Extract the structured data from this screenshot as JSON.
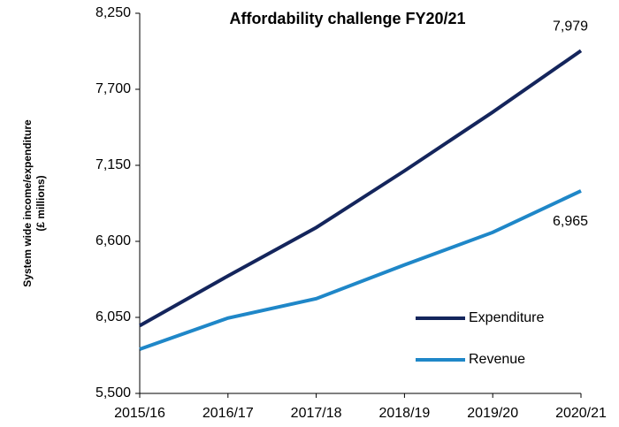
{
  "chart_data": {
    "type": "line",
    "title": "Affordability challenge FY20/21",
    "ylabel": [
      "System wide income/expenditure",
      "(£ millions)"
    ],
    "categories": [
      "2015/16",
      "2016/17",
      "2017/18",
      "2018/19",
      "2019/20",
      "2020/21"
    ],
    "series": [
      {
        "name": "Expenditure",
        "color": "#14255c",
        "values": [
          5990,
          6350,
          6700,
          7110,
          7535,
          7979
        ],
        "value_labels": [
          null,
          null,
          null,
          null,
          null,
          "7,979"
        ]
      },
      {
        "name": "Revenue",
        "color": "#1f87c8",
        "values": [
          5820,
          6045,
          6185,
          6430,
          6665,
          6965
        ],
        "value_labels": [
          null,
          null,
          null,
          null,
          null,
          "6,965"
        ]
      }
    ],
    "ylim": [
      5500,
      8250
    ],
    "yticks": [
      {
        "value": 5500,
        "label": "5,500"
      },
      {
        "value": 6050,
        "label": "6,050"
      },
      {
        "value": 6600,
        "label": "6,600"
      },
      {
        "value": 7150,
        "label": "7,150"
      },
      {
        "value": 7700,
        "label": "7,700"
      },
      {
        "value": 8250,
        "label": "8,250"
      }
    ],
    "grid": false,
    "legend": "lower right"
  }
}
